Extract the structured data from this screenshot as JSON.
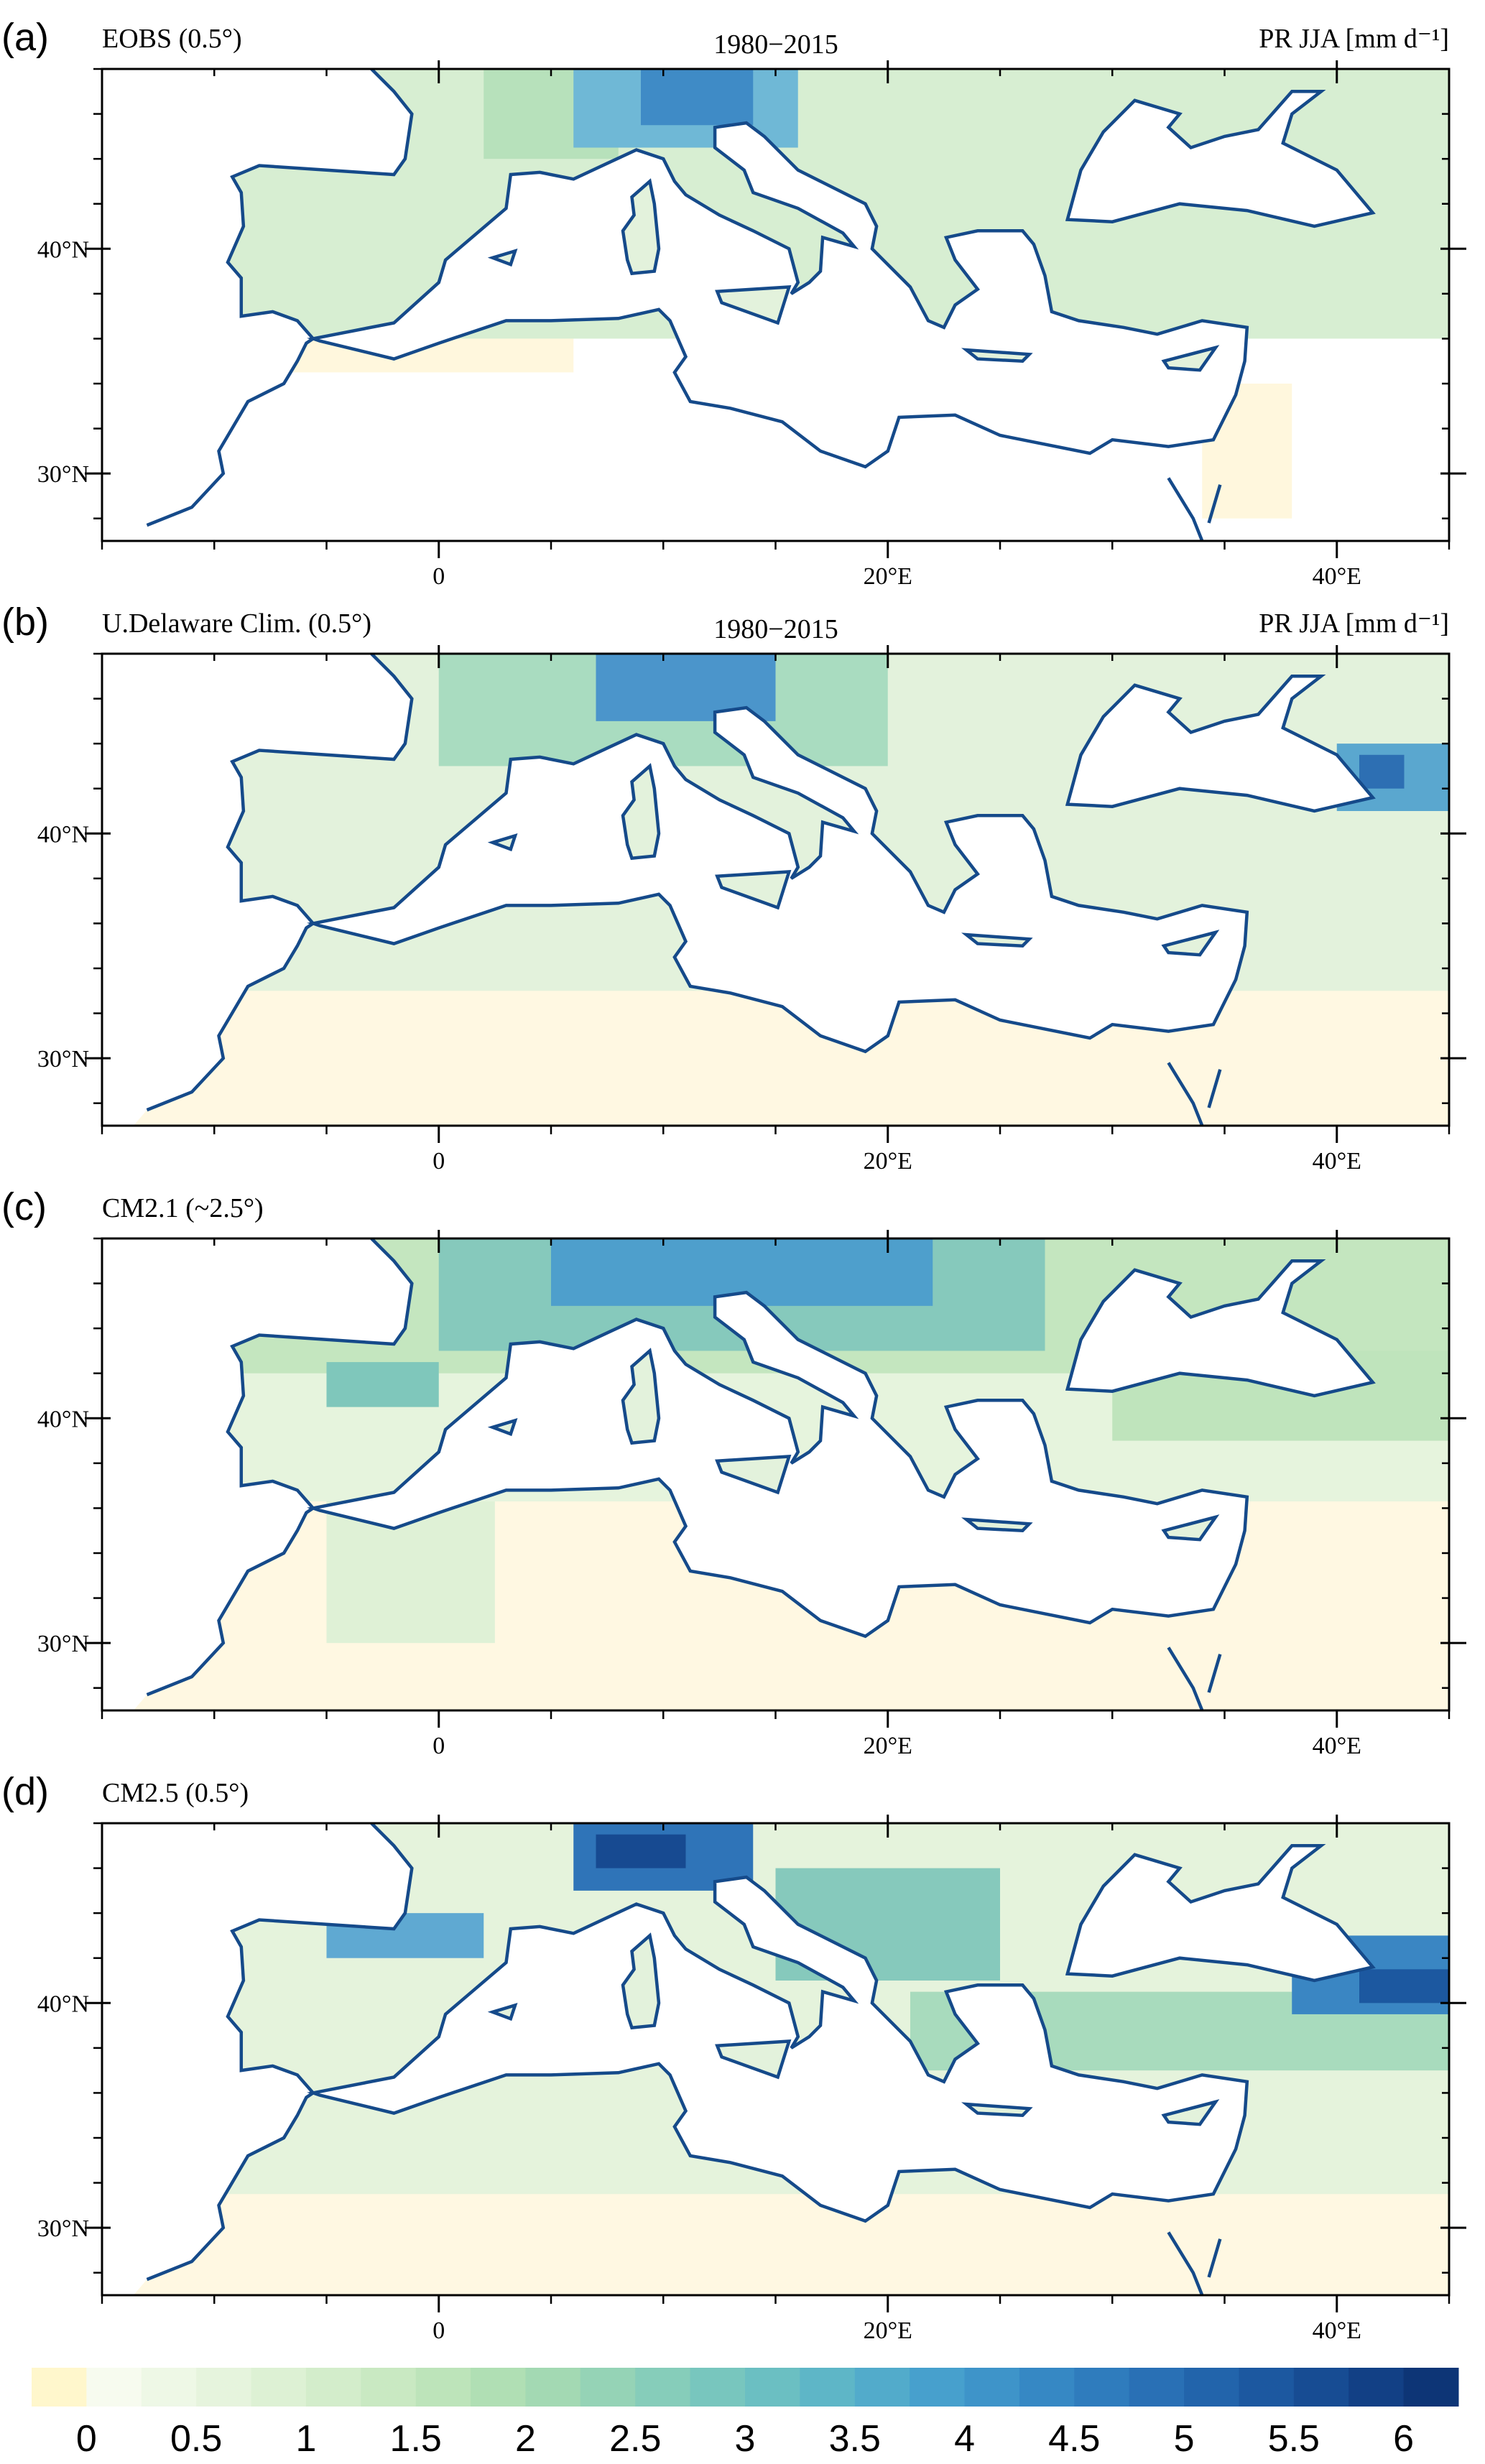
{
  "panels": [
    {
      "label": "(a)",
      "title_left": "EOBS (0.5°)",
      "title_center": "1980−2015",
      "title_right": "PR JJA [mm d⁻¹]",
      "xticks": [
        {
          "value": 0,
          "label": "0"
        },
        {
          "value": 20,
          "label": "20°E"
        },
        {
          "value": 40,
          "label": "40°E"
        }
      ],
      "yticks": [
        {
          "value": 30,
          "label": "30°N"
        },
        {
          "value": 40,
          "label": "40°N"
        }
      ]
    },
    {
      "label": "(b)",
      "title_left": "U.Delaware Clim. (0.5°)",
      "title_center": "1980−2015",
      "title_right": "PR JJA [mm d⁻¹]",
      "xticks": [
        {
          "value": 0,
          "label": "0"
        },
        {
          "value": 20,
          "label": "20°E"
        },
        {
          "value": 40,
          "label": "40°E"
        }
      ],
      "yticks": [
        {
          "value": 30,
          "label": "30°N"
        },
        {
          "value": 40,
          "label": "40°N"
        }
      ]
    },
    {
      "label": "(c)",
      "title_left": "CM2.1 (~2.5°)",
      "xticks": [
        {
          "value": 0,
          "label": "0"
        },
        {
          "value": 20,
          "label": "20°E"
        },
        {
          "value": 40,
          "label": "40°E"
        }
      ],
      "yticks": [
        {
          "value": 30,
          "label": "30°N"
        },
        {
          "value": 40,
          "label": "40°N"
        }
      ]
    },
    {
      "label": "(d)",
      "title_left": "CM2.5 (0.5°)",
      "xticks": [
        {
          "value": 0,
          "label": "0"
        },
        {
          "value": 20,
          "label": "20°E"
        },
        {
          "value": 40,
          "label": "40°E"
        }
      ],
      "yticks": [
        {
          "value": 30,
          "label": "30°N"
        },
        {
          "value": 40,
          "label": "40°N"
        }
      ]
    }
  ],
  "colorbar": {
    "ticks": [
      0,
      0.5,
      1,
      1.5,
      2,
      2.5,
      3,
      3.5,
      4,
      4.5,
      5,
      5.5,
      6
    ],
    "colors": [
      "#fff7cc",
      "#f7fbef",
      "#eef8e6",
      "#e6f4dd",
      "#ddf1d4",
      "#d3edcb",
      "#c9e9c2",
      "#bde4ba",
      "#b0dfb4",
      "#a3d9b3",
      "#95d3b6",
      "#86cdba",
      "#78c6be",
      "#6bbfc2",
      "#5eb6c7",
      "#52abcb",
      "#47a0cd",
      "#3e94c9",
      "#3688c4",
      "#2f7cbd",
      "#2970b5",
      "#2264ab",
      "#1c58a0",
      "#174c93",
      "#124085",
      "#0d3576"
    ]
  }
}
